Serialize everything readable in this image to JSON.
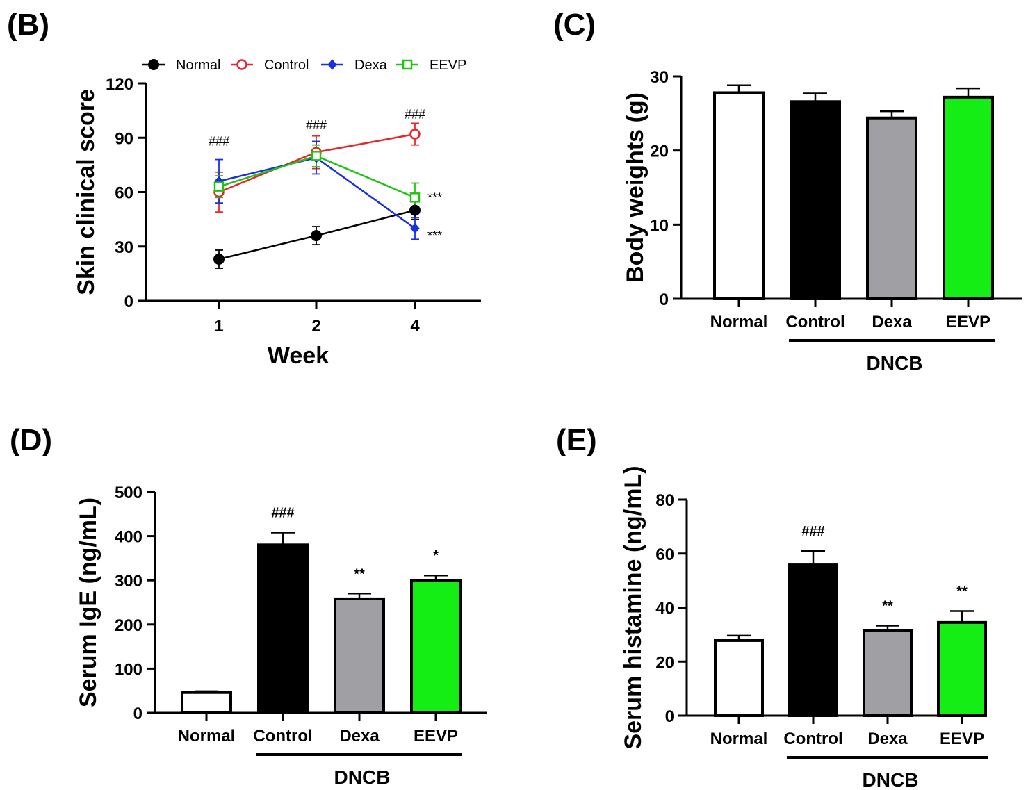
{
  "colors": {
    "Normal": "#000000",
    "Control": "#e8262a",
    "Dexa": "#1a2fe0",
    "EEVP": "#22c414",
    "bar_Normal": "#ffffff",
    "bar_Control": "#000000",
    "bar_Dexa": "#a0a0a4",
    "bar_EEVP": "#15ee15"
  },
  "chart_data": [
    {
      "id": "B",
      "panel_label": "(B)",
      "type": "line",
      "xlabel": "Week",
      "ylabel": "Skin clinical score",
      "x": [
        "1",
        "2",
        "4"
      ],
      "ylim": [
        0,
        120
      ],
      "yticks": [
        "0",
        "30",
        "60",
        "90",
        "120"
      ],
      "legend_position": "top",
      "series": [
        {
          "name": "Normal",
          "marker": "filled-circle",
          "values": [
            23,
            36,
            50
          ],
          "errors": [
            5,
            5,
            5
          ]
        },
        {
          "name": "Control",
          "marker": "open-circle",
          "values": [
            60,
            82,
            92
          ],
          "errors": [
            11,
            9,
            6
          ]
        },
        {
          "name": "Dexa",
          "marker": "filled-diamond",
          "values": [
            66,
            79,
            40
          ],
          "errors": [
            12,
            9,
            6
          ]
        },
        {
          "name": "EEVP",
          "marker": "open-square",
          "values": [
            63,
            80,
            57
          ],
          "errors": [
            6,
            6,
            8
          ]
        }
      ],
      "annotations": [
        {
          "text": "###",
          "x": "1",
          "y": 88
        },
        {
          "text": "###",
          "x": "2",
          "y": 97
        },
        {
          "text": "###",
          "x": "4",
          "y": 103
        },
        {
          "text": "***",
          "x": "4",
          "y": 57
        },
        {
          "text": "***",
          "x": "4",
          "y": 36
        }
      ]
    },
    {
      "id": "C",
      "panel_label": "(C)",
      "type": "bar",
      "ylabel": "Body weights (g)",
      "categories": [
        "Normal",
        "Control",
        "Dexa",
        "EEVP"
      ],
      "values": [
        27.8,
        26.6,
        24.4,
        27.2
      ],
      "errors": [
        1.0,
        1.1,
        0.9,
        1.2
      ],
      "ylim": [
        0,
        30
      ],
      "yticks": [
        "0",
        "10",
        "20",
        "30"
      ],
      "group_label": "DNCB",
      "annotations": [
        "",
        "",
        "",
        ""
      ]
    },
    {
      "id": "D",
      "panel_label": "(D)",
      "type": "bar",
      "ylabel": "Serum IgE (ng/mL)",
      "categories": [
        "Normal",
        "Control",
        "Dexa",
        "EEVP"
      ],
      "values": [
        46,
        380,
        258,
        300
      ],
      "errors": [
        3,
        28,
        12,
        11
      ],
      "ylim": [
        0,
        500
      ],
      "yticks": [
        "0",
        "100",
        "200",
        "300",
        "400",
        "500"
      ],
      "group_label": "DNCB",
      "annotations": [
        "",
        "###",
        "**",
        "*"
      ]
    },
    {
      "id": "E",
      "panel_label": "(E)",
      "type": "bar",
      "ylabel": "Serum histamine (ng/mL)",
      "categories": [
        "Normal",
        "Control",
        "Dexa",
        "EEVP"
      ],
      "values": [
        27.8,
        55.8,
        31.5,
        34.5
      ],
      "errors": [
        1.8,
        5.2,
        1.8,
        4.2
      ],
      "ylim": [
        0,
        80
      ],
      "yticks": [
        "0",
        "20",
        "40",
        "60",
        "80"
      ],
      "group_label": "DNCB",
      "annotations": [
        "",
        "###",
        "**",
        "**"
      ]
    }
  ]
}
